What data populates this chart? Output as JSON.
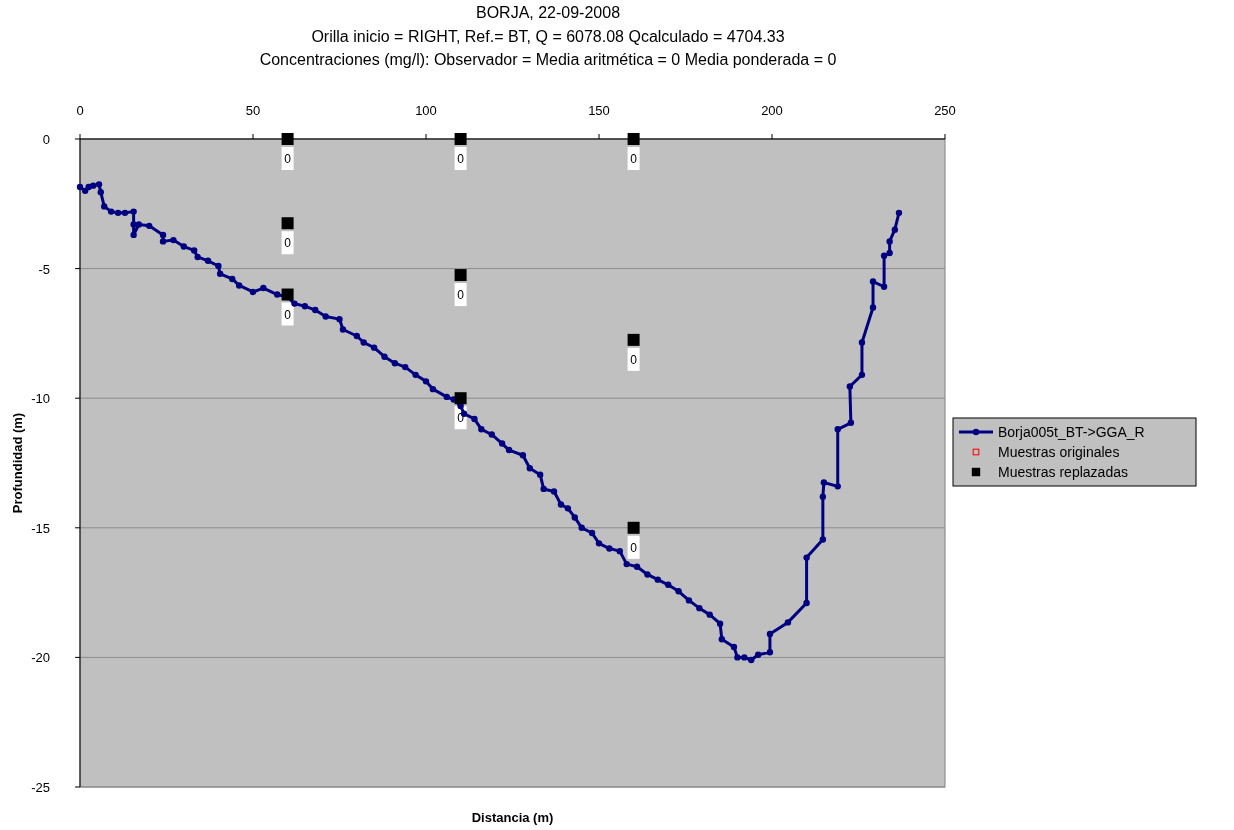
{
  "chart_data": {
    "type": "line",
    "title": "BORJA,  22-09-2008",
    "subtitle": "Orilla inicio = RIGHT,  Ref.= BT,  Q = 6078.08  Qcalculado = 4704.33\nConcentraciones (mg/l):  Observador =   Media aritmética = 0  Media ponderada = 0",
    "xlabel": "Distancia (m)",
    "ylabel": "Profundidad (m)",
    "xlim": [
      0,
      250
    ],
    "xticks": [
      0,
      50,
      100,
      150,
      200,
      250
    ],
    "ylim": [
      -25,
      0
    ],
    "yticks": [
      -25,
      -20,
      -15,
      -10,
      -5,
      0
    ],
    "grid": "y",
    "legend": "right",
    "line_style": "solid",
    "series": [
      {
        "name": "Borja005t_BT->GGA_R",
        "color": "#000080",
        "marker": "circle",
        "x": [
          0,
          1.5,
          2.5,
          3.8,
          5.5,
          6,
          7,
          9,
          11,
          13,
          15.5,
          15.5,
          15.5,
          17,
          20,
          24,
          24,
          27,
          30,
          33,
          34,
          37,
          40,
          40.5,
          44,
          46,
          50,
          53,
          57,
          60,
          62,
          65,
          68,
          71,
          75,
          76,
          80,
          82,
          85,
          88,
          91,
          94,
          97,
          100,
          102,
          106,
          108,
          110,
          111,
          114,
          116,
          119,
          122,
          124,
          128,
          130,
          133,
          134,
          137,
          139,
          141,
          143,
          145,
          148,
          150,
          153,
          156,
          158,
          161,
          164,
          167,
          170,
          173,
          176,
          179,
          182,
          185,
          185.5,
          189,
          190,
          192,
          194,
          196,
          199.4,
          199.4,
          204.6,
          210,
          210,
          214.7,
          214.7,
          215,
          219,
          219,
          222.8,
          222.5,
          226,
          226,
          229.2,
          229.2,
          232.4,
          232.4,
          234,
          234,
          235.5,
          236.7
        ],
        "values": [
          -1.85,
          -2.0,
          -1.85,
          -1.8,
          -1.75,
          -2.05,
          -2.6,
          -2.8,
          -2.85,
          -2.85,
          -2.8,
          -3.3,
          -3.7,
          -3.3,
          -3.35,
          -3.7,
          -3.95,
          -3.9,
          -4.15,
          -4.3,
          -4.55,
          -4.7,
          -4.9,
          -5.2,
          -5.4,
          -5.65,
          -5.9,
          -5.75,
          -6.0,
          -6.1,
          -6.35,
          -6.45,
          -6.6,
          -6.85,
          -6.95,
          -7.35,
          -7.6,
          -7.85,
          -8.05,
          -8.4,
          -8.65,
          -8.8,
          -9.1,
          -9.35,
          -9.65,
          -9.95,
          -10.05,
          -10.3,
          -10.6,
          -10.8,
          -11.2,
          -11.4,
          -11.75,
          -12.0,
          -12.2,
          -12.7,
          -12.95,
          -13.5,
          -13.6,
          -14.1,
          -14.25,
          -14.6,
          -15.0,
          -15.2,
          -15.6,
          -15.8,
          -15.9,
          -16.4,
          -16.5,
          -16.8,
          -17.0,
          -17.2,
          -17.45,
          -17.8,
          -18.1,
          -18.35,
          -18.7,
          -19.3,
          -19.6,
          -20.0,
          -20.0,
          -20.1,
          -19.9,
          -19.8,
          -19.1,
          -18.65,
          -17.9,
          -16.15,
          -15.45,
          -13.8,
          -13.25,
          -13.4,
          -11.2,
          -10.95,
          -9.55,
          -9.1,
          -7.85,
          -6.5,
          -5.5,
          -5.7,
          -4.5,
          -4.4,
          -3.95,
          -3.5,
          -2.85
        ]
      },
      {
        "name": "Muestras originales",
        "color": "#ff0000",
        "type": "scatter",
        "marker": "square"
      },
      {
        "name": "Muestras replazadas",
        "color": "#000000",
        "type": "scatter",
        "marker": "square",
        "x": [
          60,
          60,
          60,
          110,
          110,
          110,
          160,
          160,
          160
        ],
        "values": [
          0,
          -3.25,
          -6,
          0,
          -5.25,
          -10,
          0,
          -7.75,
          -15
        ]
      }
    ],
    "annotations": [
      {
        "text": "0",
        "x": 60,
        "y": 0
      },
      {
        "text": "0",
        "x": 60,
        "y": -3.25
      },
      {
        "text": "0",
        "x": 60,
        "y": -6
      },
      {
        "text": "0",
        "x": 110,
        "y": 0
      },
      {
        "text": "0",
        "x": 110,
        "y": -5.25
      },
      {
        "text": "0",
        "x": 110,
        "y": -10
      },
      {
        "text": "0",
        "x": 160,
        "y": 0
      },
      {
        "text": "0",
        "x": 160,
        "y": -7.75
      },
      {
        "text": "0",
        "x": 160,
        "y": -15
      }
    ]
  }
}
